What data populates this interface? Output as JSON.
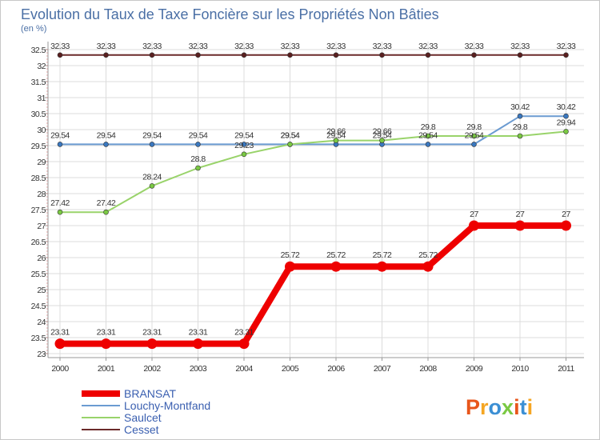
{
  "chart_data": {
    "type": "line",
    "title": "Evolution du Taux de Taxe Foncière sur les Propriétés Non Bâties",
    "unit_label": "(en %)",
    "xlabel": "",
    "ylabel": "(en %)",
    "categories": [
      "2000",
      "2001",
      "2002",
      "2003",
      "2004",
      "2005",
      "2006",
      "2007",
      "2008",
      "2009",
      "2010",
      "2011"
    ],
    "ylim": [
      23,
      32.5
    ],
    "yticks": [
      "23",
      "23.5",
      "24",
      "24.5",
      "25",
      "25.5",
      "26",
      "26.5",
      "27",
      "27.5",
      "28",
      "28.5",
      "29",
      "29.5",
      "30",
      "30.5",
      "31",
      "31.5",
      "32",
      "32.5"
    ],
    "grid": true,
    "legend": "bottom-left",
    "series": [
      {
        "name": "Cesset",
        "color": "#6b2a2a",
        "marker_color": "#5a1f1f",
        "bold": false,
        "values": [
          32.33,
          32.33,
          32.33,
          32.33,
          32.33,
          32.33,
          32.33,
          32.33,
          32.33,
          32.33,
          32.33,
          32.33
        ],
        "labels": [
          "32.33",
          "32.33",
          "32.33",
          "32.33",
          "32.33",
          "32.33",
          "32.33",
          "32.33",
          "32.33",
          "32.33",
          "32.33",
          "32.33"
        ]
      },
      {
        "name": "Louchy-Montfand",
        "color": "#6b9bd1",
        "marker_color": "#3a78c0",
        "bold": false,
        "values": [
          29.54,
          29.54,
          29.54,
          29.54,
          29.54,
          29.54,
          29.54,
          29.54,
          29.54,
          29.54,
          30.42,
          30.42
        ],
        "labels": [
          "29.54",
          "29.54",
          "29.54",
          "29.54",
          "29.54",
          "29.54",
          "29.54",
          "29.54",
          "29.54",
          "29.54",
          "30.42",
          "30.42"
        ]
      },
      {
        "name": "Saulcet",
        "color": "#99d36a",
        "marker_color": "#7ac943",
        "bold": false,
        "values": [
          27.42,
          27.42,
          28.24,
          28.8,
          29.23,
          29.54,
          29.66,
          29.66,
          29.8,
          29.8,
          29.8,
          29.94
        ],
        "labels": [
          "27.42",
          "27.42",
          "28.24",
          "28.8",
          "29.23",
          "29.54",
          "29.66",
          "29.66",
          "29.8",
          "29.8",
          "29.8",
          "29.94"
        ]
      },
      {
        "name": "BRANSAT",
        "color": "#ee0000",
        "marker_color": "#ee0000",
        "bold": true,
        "values": [
          23.31,
          23.31,
          23.31,
          23.31,
          23.31,
          25.72,
          25.72,
          25.72,
          25.72,
          27,
          27,
          27
        ],
        "labels": [
          "23.31",
          "23.31",
          "23.31",
          "23.31",
          "23.31",
          "25.72",
          "25.72",
          "25.72",
          "25.72",
          "27",
          "27",
          "27"
        ]
      }
    ],
    "legend_order": [
      "BRANSAT",
      "Louchy-Montfand",
      "Saulcet",
      "Cesset"
    ]
  },
  "logo": {
    "letters": [
      "P",
      "r",
      "o",
      "x",
      "i",
      "t",
      "i"
    ],
    "colors": [
      "#e8561b",
      "#f5a623",
      "#3b8fd4",
      "#7ac943",
      "#e8561b",
      "#3b8fd4",
      "#f5a623"
    ]
  }
}
